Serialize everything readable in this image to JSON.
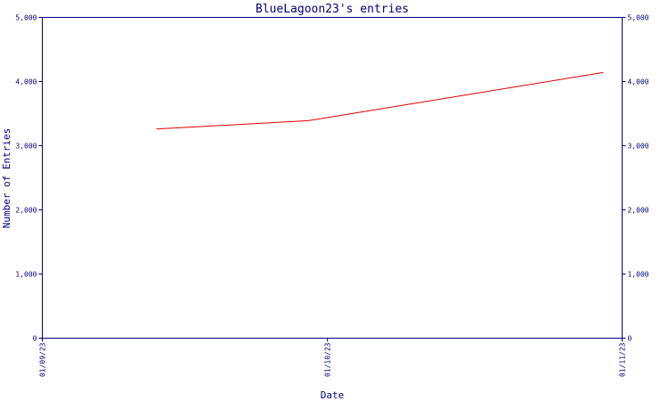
{
  "chart_data": {
    "type": "line",
    "title": "BlueLagoon23's entries",
    "xlabel": "Date",
    "ylabel": "Number of Entries",
    "x_tick_labels": [
      "01/09/23",
      "01/10/23",
      "01/11/23"
    ],
    "y_tick_labels": [
      "0",
      "1,000",
      "2,000",
      "3,000",
      "4,000",
      "5,000"
    ],
    "y_tick_values": [
      0,
      1000,
      2000,
      3000,
      4000,
      5000
    ],
    "xlim": [
      "2023-09-01",
      "2023-11-01"
    ],
    "ylim": [
      0,
      5000
    ],
    "grid": false,
    "colors": {
      "axis": "#000080",
      "series": "#dd0000",
      "background": "#ffffff"
    },
    "series": [
      {
        "points": [
          {
            "x": "2023-09-13",
            "y": 3260
          },
          {
            "x": "2023-09-29",
            "y": 3390
          },
          {
            "x": "2023-10-30",
            "y": 4140
          }
        ]
      }
    ]
  }
}
